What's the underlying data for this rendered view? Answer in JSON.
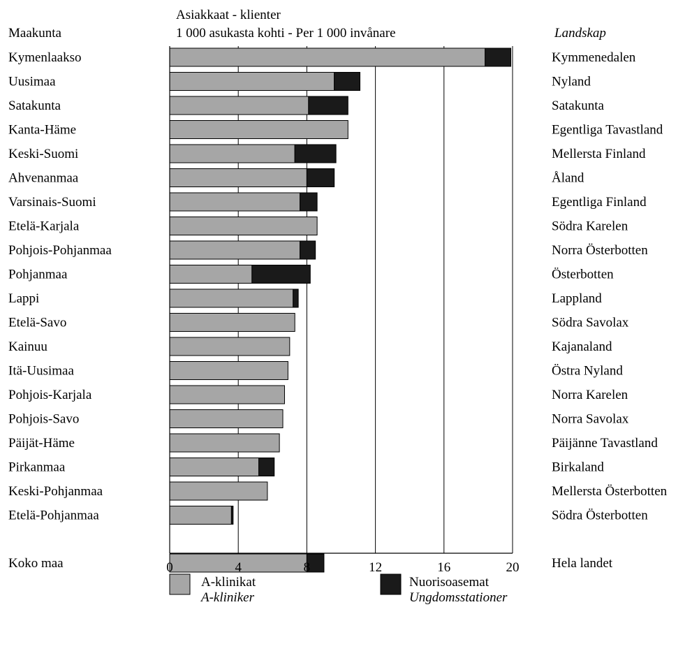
{
  "chart_data": {
    "type": "bar",
    "orientation": "horizontal",
    "stacked": true,
    "title_line1": {
      "text": "Asiakkaat - ",
      "italic": "klienter"
    },
    "title_line2": {
      "text": "1 000 asukasta kohti - ",
      "italic": "Per 1 000 invånare"
    },
    "left_header": "Maakunta",
    "right_header": "Landskap",
    "xlim": [
      0,
      20
    ],
    "xticks": [
      "0",
      "4",
      "8",
      "12",
      "16",
      "20"
    ],
    "grid": true,
    "legend_position": "bottom",
    "colors": {
      "a_klinikat": "#a6a6a6",
      "nuorisoasemat": "#1a1a1a",
      "axis": "#000000",
      "grid": "#000000"
    },
    "series": [
      {
        "name": "A-klinikat",
        "name_alt": "A-kliniker",
        "color_key": "a_klinikat"
      },
      {
        "name": "Nuorisoasemat",
        "name_alt": "Ungdomsstationer",
        "color_key": "nuorisoasemat"
      }
    ],
    "rows": [
      {
        "fi": "Kymenlaakso",
        "sv": "Kymmenedalen",
        "a_klinikat": 18.4,
        "nuorisoasemat": 1.5
      },
      {
        "fi": "Uusimaa",
        "sv": "Nyland",
        "a_klinikat": 9.6,
        "nuorisoasemat": 1.5
      },
      {
        "fi": "Satakunta",
        "sv": "Satakunta",
        "a_klinikat": 8.1,
        "nuorisoasemat": 2.3
      },
      {
        "fi": "Kanta-Häme",
        "sv": "Egentliga Tavastland",
        "a_klinikat": 10.4,
        "nuorisoasemat": 0
      },
      {
        "fi": "Keski-Suomi",
        "sv": "Mellersta Finland",
        "a_klinikat": 7.3,
        "nuorisoasemat": 2.4
      },
      {
        "fi": "Ahvenanmaa",
        "sv": "Åland",
        "a_klinikat": 8.0,
        "nuorisoasemat": 1.6
      },
      {
        "fi": "Varsinais-Suomi",
        "sv": "Egentliga Finland",
        "a_klinikat": 7.6,
        "nuorisoasemat": 1.0
      },
      {
        "fi": "Etelä-Karjala",
        "sv": "Södra Karelen",
        "a_klinikat": 8.6,
        "nuorisoasemat": 0
      },
      {
        "fi": "Pohjois-Pohjanmaa",
        "sv": "Norra Österbotten",
        "a_klinikat": 7.6,
        "nuorisoasemat": 0.9
      },
      {
        "fi": "Pohjanmaa",
        "sv": "Österbotten",
        "a_klinikat": 4.8,
        "nuorisoasemat": 3.4
      },
      {
        "fi": "Lappi",
        "sv": "Lappland",
        "a_klinikat": 7.2,
        "nuorisoasemat": 0.3
      },
      {
        "fi": "Etelä-Savo",
        "sv": "Södra Savolax",
        "a_klinikat": 7.3,
        "nuorisoasemat": 0
      },
      {
        "fi": "Kainuu",
        "sv": "Kajanaland",
        "a_klinikat": 7.0,
        "nuorisoasemat": 0
      },
      {
        "fi": "Itä-Uusimaa",
        "sv": "Östra Nyland",
        "a_klinikat": 6.9,
        "nuorisoasemat": 0
      },
      {
        "fi": "Pohjois-Karjala",
        "sv": "Norra Karelen",
        "a_klinikat": 6.7,
        "nuorisoasemat": 0
      },
      {
        "fi": "Pohjois-Savo",
        "sv": "Norra Savolax",
        "a_klinikat": 6.6,
        "nuorisoasemat": 0
      },
      {
        "fi": "Päijät-Häme",
        "sv": "Päijänne Tavastland",
        "a_klinikat": 6.4,
        "nuorisoasemat": 0
      },
      {
        "fi": "Pirkanmaa",
        "sv": "Birkaland",
        "a_klinikat": 5.2,
        "nuorisoasemat": 0.9
      },
      {
        "fi": "Keski-Pohjanmaa",
        "sv": "Mellersta Österbotten",
        "a_klinikat": 5.7,
        "nuorisoasemat": 0
      },
      {
        "fi": "Etelä-Pohjanmaa",
        "sv": "Södra Österbotten",
        "a_klinikat": 3.6,
        "nuorisoasemat": 0.1
      },
      {
        "fi": "Koko maa",
        "sv": "Hela landet",
        "a_klinikat": 8.0,
        "nuorisoasemat": 1.0,
        "total": true
      }
    ]
  }
}
